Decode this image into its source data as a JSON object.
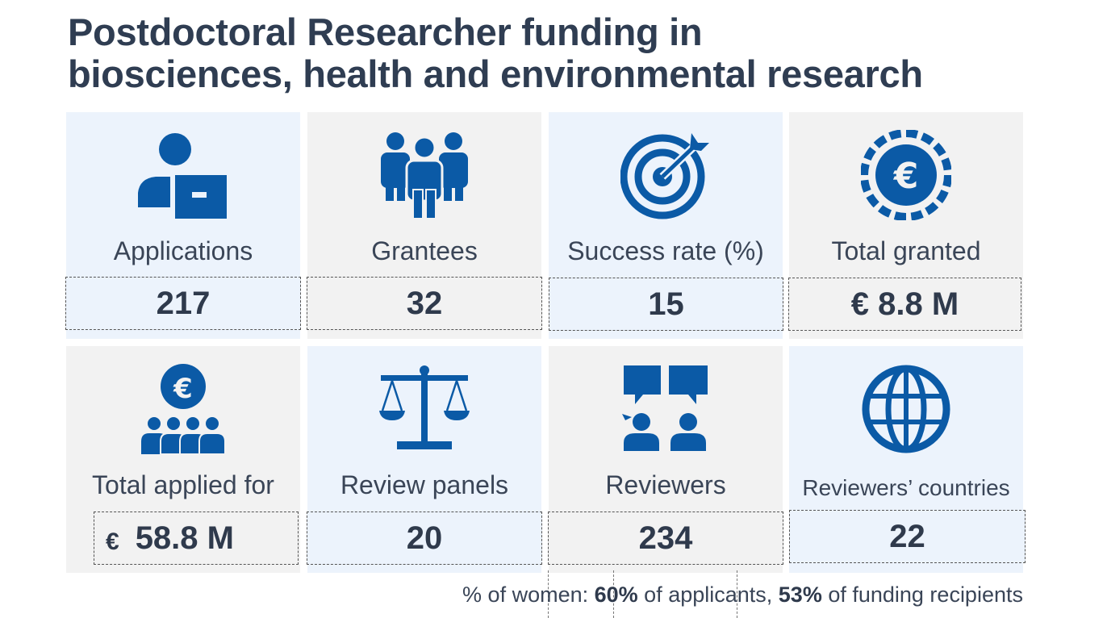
{
  "title": {
    "line1": "Postdoctoral Researcher funding in",
    "line2": "biosciences, health and environmental research"
  },
  "colors": {
    "icon": "#0b5aa6",
    "tile_blue": "#ecf3fc",
    "tile_grey": "#f2f2f2",
    "text": "#2f3a4c"
  },
  "stats": [
    {
      "icon": "applicant-icon",
      "label": "Applications",
      "value": "217"
    },
    {
      "icon": "grantees-group-icon",
      "label": "Grantees",
      "value": "32"
    },
    {
      "icon": "target-icon",
      "label": "Success rate (%)",
      "value": "15"
    },
    {
      "icon": "euro-coin-icon",
      "label": "Total granted",
      "value": "€ 8.8 M"
    },
    {
      "icon": "euro-people-icon",
      "label": "Total applied for",
      "value_currency": "€",
      "value": "58.8 M"
    },
    {
      "icon": "scales-icon",
      "label": "Review panels",
      "value": "20"
    },
    {
      "icon": "reviewers-chat-icon",
      "label": "Reviewers",
      "value": "234"
    },
    {
      "icon": "globe-icon",
      "label": "Reviewers’ countries",
      "value": "22"
    }
  ],
  "footer": {
    "prefix": "% of women: ",
    "women_applicants": "60%",
    "applicants_text": " of applicants, ",
    "women_recipients": "53%",
    "recipients_text": " of funding recipients"
  }
}
